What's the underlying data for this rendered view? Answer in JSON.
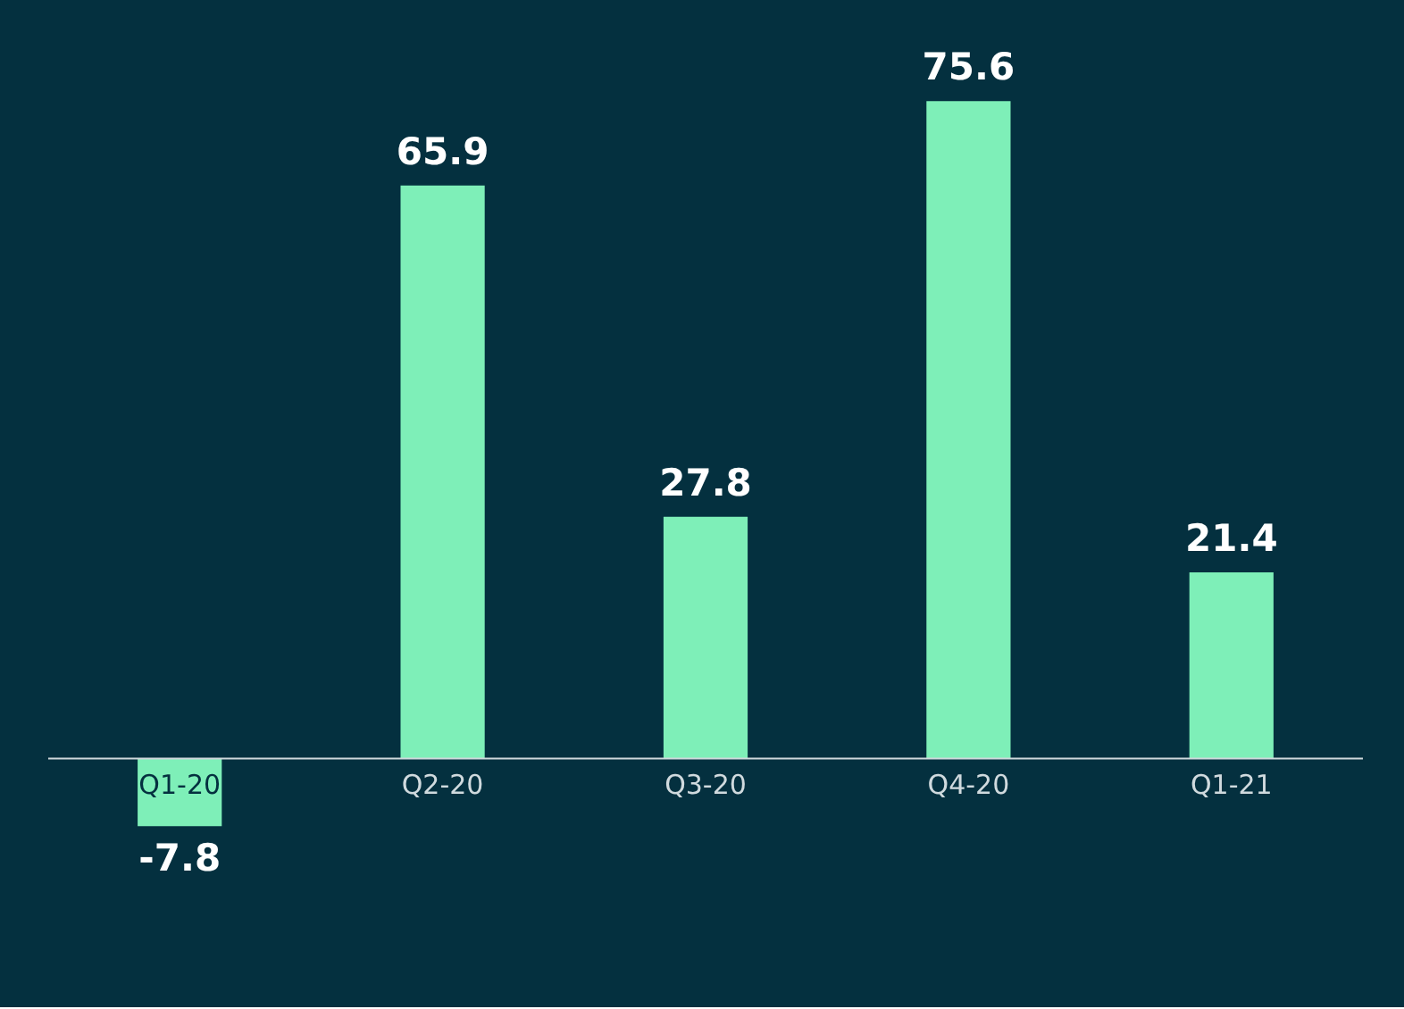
{
  "chart_data": {
    "type": "bar",
    "categories": [
      "Q1-20",
      "Q2-20",
      "Q3-20",
      "Q4-20",
      "Q1-21"
    ],
    "series": [
      {
        "color": "#7eefb8",
        "values": [
          -7.8,
          65.9,
          27.8,
          75.6,
          21.4
        ]
      }
    ],
    "data_labels": true
  }
}
